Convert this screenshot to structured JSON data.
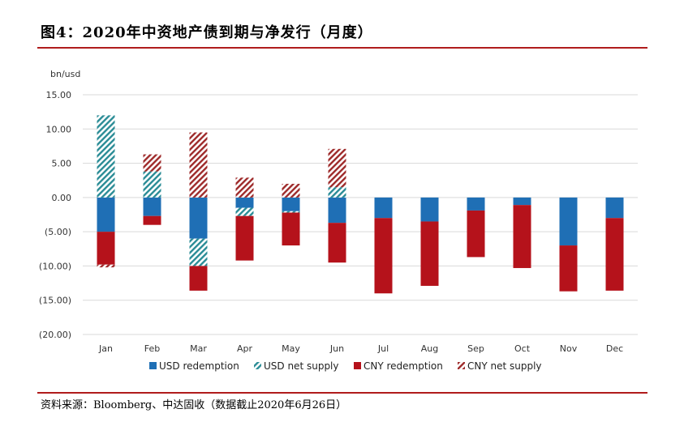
{
  "header": {
    "title": "图4：2020年中资地产债到期与净发行（月度）"
  },
  "footer": {
    "source": "资料来源：Bloomberg、中达固收（数据截止2020年6月26日）"
  },
  "colors": {
    "usd_redemption": "#1f6fb5",
    "usd_net_supply": "#2a8c96",
    "cny_redemption": "#b5121b",
    "cny_net_supply": "#9e2a2a",
    "rule": "#b01c1c",
    "grid": "#d9d9d9"
  },
  "chart_data": {
    "type": "bar",
    "stacked": true,
    "ylabel": "bn/usd",
    "ylim": [
      -20,
      15
    ],
    "yticks": [
      15,
      10,
      5,
      0,
      -5,
      -10,
      -15,
      -20
    ],
    "ytick_labels": [
      "15.00",
      "10.00",
      "5.00",
      "0.00",
      "(5.00)",
      "(10.00)",
      "(15.00)",
      "(20.00)"
    ],
    "categories": [
      "Jan",
      "Feb",
      "Mar",
      "Apr",
      "May",
      "Jun",
      "Jul",
      "Aug",
      "Sep",
      "Oct",
      "Nov",
      "Dec"
    ],
    "series": [
      {
        "name": "USD redemption",
        "key": "usd_redemption",
        "pattern": "solid",
        "values": [
          -5.0,
          -2.7,
          -6.0,
          -1.5,
          -2.0,
          -3.7,
          -3.0,
          -3.5,
          -1.9,
          -1.1,
          -7.0,
          -3.0
        ]
      },
      {
        "name": "USD net supply",
        "key": "usd_net_supply",
        "pattern": "hatch",
        "values": [
          12.0,
          3.8,
          -4.0,
          -1.2,
          -0.2,
          1.5,
          0,
          0,
          0,
          0,
          0,
          0
        ]
      },
      {
        "name": "CNY redemption",
        "key": "cny_redemption",
        "pattern": "solid",
        "values": [
          -4.8,
          -1.3,
          -3.6,
          -6.5,
          -4.8,
          -5.8,
          -11.0,
          -9.4,
          -6.8,
          -9.2,
          -6.7,
          -10.6
        ]
      },
      {
        "name": "CNY net supply",
        "key": "cny_net_supply",
        "pattern": "hatch",
        "values": [
          -0.4,
          2.5,
          9.5,
          2.9,
          2.0,
          5.6,
          0,
          0,
          0,
          0,
          0,
          0
        ]
      }
    ],
    "legend": "bottom"
  }
}
